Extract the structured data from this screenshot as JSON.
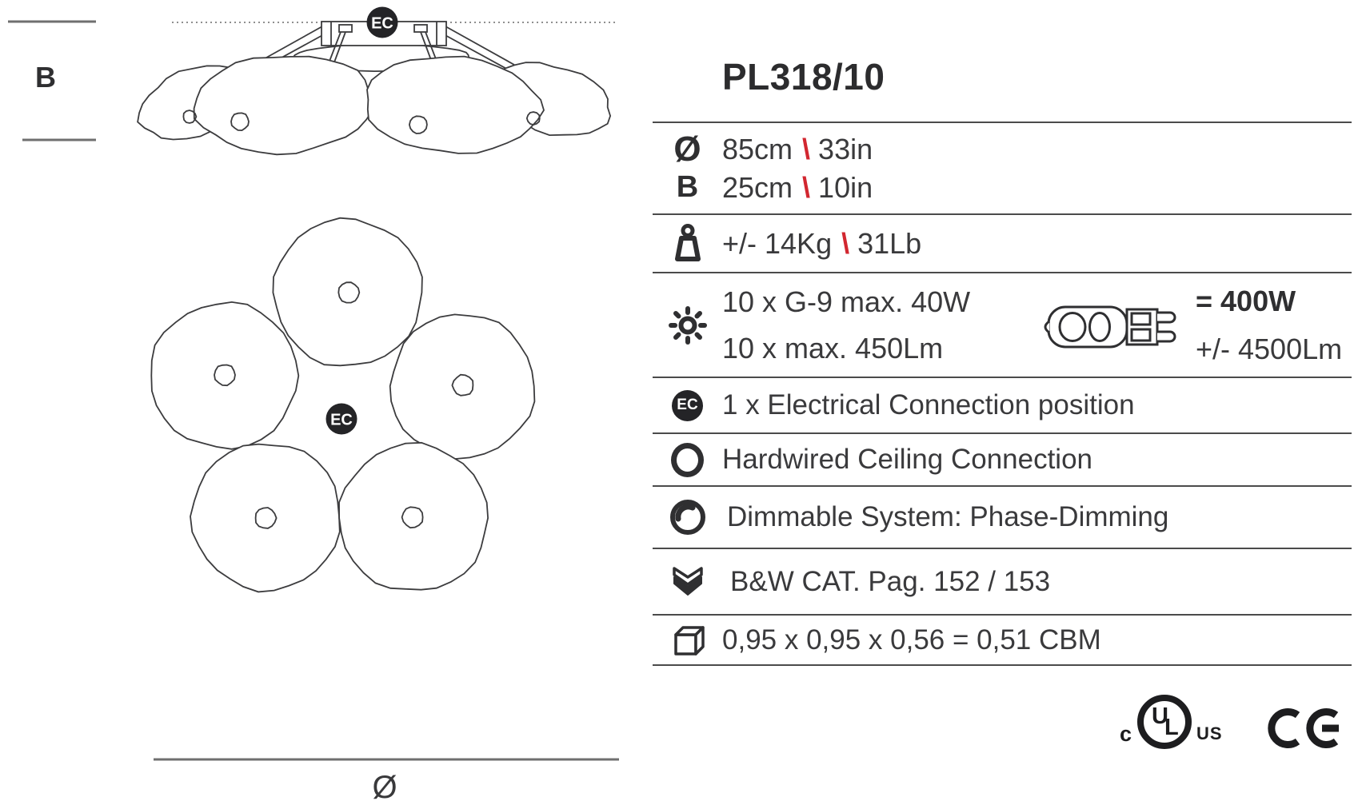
{
  "title": "PL318/10",
  "separator": "\\",
  "diagram": {
    "height_dim_label": "B",
    "diameter_dim_label": "Ø",
    "ec_badge": "EC"
  },
  "specs": {
    "diameter": {
      "symbol": "Ø",
      "metric": "85cm",
      "imperial": "33in"
    },
    "height": {
      "symbol": "B",
      "metric": "25cm",
      "imperial": "10in"
    },
    "weight": {
      "metric": "+/- 14Kg",
      "imperial": "31Lb"
    },
    "lamping": {
      "line1": "10 x G-9 max. 40W",
      "line2": "10 x max. 450Lm",
      "total_watt": "= 400W",
      "total_lumen": "+/- 4500Lm"
    },
    "electrical_connection": {
      "badge": "EC",
      "label": "1 x Electrical Connection position"
    },
    "ceiling_connection": {
      "label": "Hardwired Ceiling Connection"
    },
    "dimming": {
      "label": "Dimmable System: Phase-Dimming"
    },
    "catalog": {
      "label": "B&W CAT. Pag. 152 / 153"
    },
    "volume": {
      "label": "0,95 x 0,95 x 0,56 = 0,51 CBM"
    }
  },
  "certifications": {
    "cul": {
      "left": "c",
      "letter_u": "U",
      "letter_l": "L",
      "right": "US"
    },
    "ce": "CE"
  },
  "colors": {
    "accent_red": "#d22730",
    "text": "#3a3a3c",
    "rule": "#4b4b4b",
    "badge": "#242427"
  }
}
